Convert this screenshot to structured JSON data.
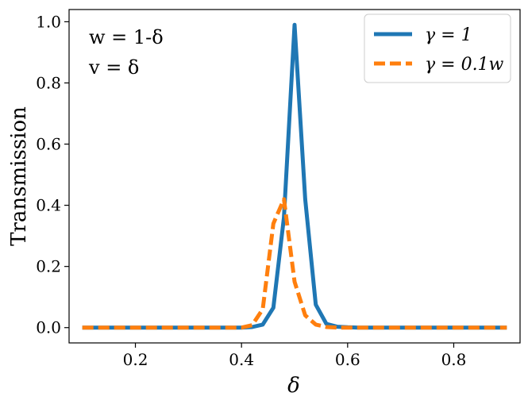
{
  "chart_data": {
    "type": "line",
    "xlabel": "δ",
    "ylabel": "Transmission",
    "xlim": [
      0.075,
      0.925
    ],
    "ylim": [
      -0.05,
      1.04
    ],
    "x_ticks": [
      0.2,
      0.4,
      0.6,
      0.8
    ],
    "x_tick_labels": [
      "0.2",
      "0.4",
      "0.6",
      "0.8"
    ],
    "y_ticks": [
      0.0,
      0.2,
      0.4,
      0.6,
      0.8,
      1.0
    ],
    "y_tick_labels": [
      "0.0",
      "0.2",
      "0.4",
      "0.6",
      "0.8",
      "1.0"
    ],
    "grid": false,
    "legend_position": "top-right",
    "annotations": [
      "w = 1-δ",
      "v = δ"
    ],
    "x": [
      0.1,
      0.12,
      0.14,
      0.16,
      0.18,
      0.2,
      0.22,
      0.24,
      0.26,
      0.28,
      0.3,
      0.32,
      0.34,
      0.36,
      0.38,
      0.4,
      0.42,
      0.44,
      0.46,
      0.48,
      0.5,
      0.52,
      0.54,
      0.56,
      0.58,
      0.6,
      0.62,
      0.64,
      0.66,
      0.68,
      0.7,
      0.72,
      0.74,
      0.76,
      0.78,
      0.8,
      0.82,
      0.84,
      0.86,
      0.88,
      0.9
    ],
    "series": [
      {
        "name": "γ = 1",
        "color": "#1f77b4",
        "style": "solid",
        "values": [
          0,
          0,
          0,
          0,
          0,
          0,
          0,
          0,
          0,
          0,
          0,
          0,
          0,
          0,
          0,
          0,
          0.002,
          0.01,
          0.065,
          0.36,
          0.99,
          0.42,
          0.075,
          0.012,
          0.003,
          0.001,
          0,
          0,
          0,
          0,
          0,
          0,
          0,
          0,
          0,
          0,
          0,
          0,
          0,
          0,
          0
        ]
      },
      {
        "name": "γ = 0.1w",
        "color": "#ff7f0e",
        "style": "dashed",
        "values": [
          0,
          0,
          0,
          0,
          0,
          0,
          0,
          0,
          0,
          0,
          0,
          0,
          0,
          0,
          0,
          0,
          0.008,
          0.06,
          0.34,
          0.42,
          0.15,
          0.04,
          0.01,
          0.002,
          0,
          0,
          0,
          0,
          0,
          0,
          0,
          0,
          0,
          0,
          0,
          0,
          0,
          0,
          0,
          0,
          0
        ]
      }
    ]
  }
}
